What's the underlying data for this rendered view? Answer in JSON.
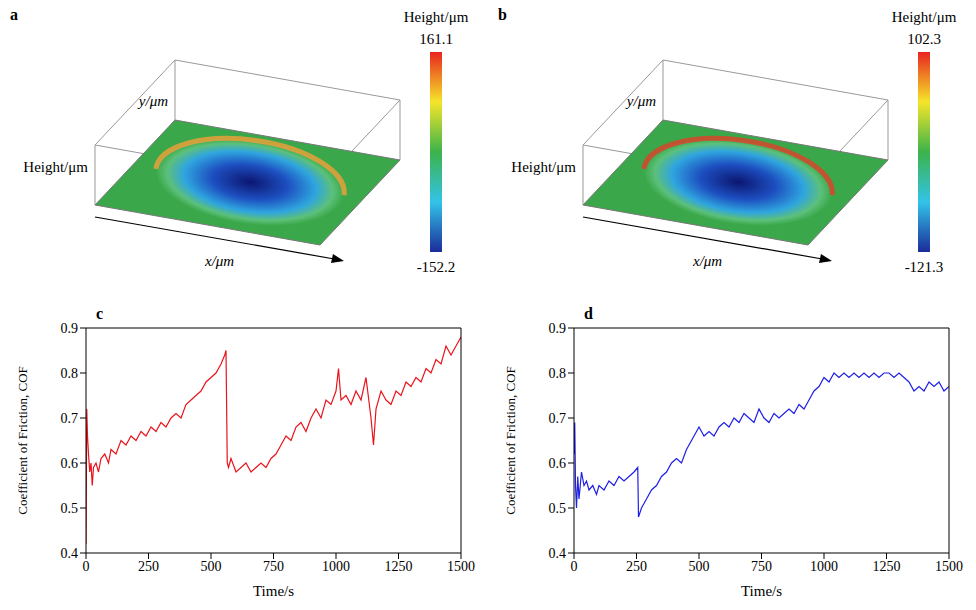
{
  "chart_data": [
    {
      "type": "surface",
      "label": "a",
      "z_label": "Height/μm",
      "x_label": "x/μm",
      "y_label": "y/μm",
      "colorbar_title": "Height/μm",
      "colorbar_range": [
        -152.2,
        161.1
      ]
    },
    {
      "type": "surface",
      "label": "b",
      "z_label": "Height/μm",
      "x_label": "x/μm",
      "y_label": "y/μm",
      "colorbar_title": "Height/μm",
      "colorbar_range": [
        -121.3,
        102.3
      ]
    },
    {
      "type": "line",
      "label": "c",
      "x_label": "Time/s",
      "y_label": "Coefficient of Friction, COF",
      "xlim": [
        0,
        1500
      ],
      "xticks": [
        0,
        250,
        500,
        750,
        1000,
        1250,
        1500
      ],
      "ylim": [
        0.4,
        0.9
      ],
      "yticks": [
        0.4,
        0.5,
        0.6,
        0.7,
        0.8,
        0.9
      ],
      "x": [
        0,
        3,
        6,
        10,
        15,
        20,
        25,
        30,
        40,
        50,
        60,
        75,
        90,
        100,
        120,
        140,
        160,
        180,
        200,
        220,
        240,
        260,
        280,
        300,
        320,
        340,
        360,
        380,
        400,
        420,
        440,
        460,
        480,
        500,
        520,
        540,
        555,
        560,
        565,
        570,
        580,
        600,
        620,
        640,
        660,
        680,
        700,
        720,
        740,
        760,
        780,
        800,
        820,
        840,
        860,
        880,
        900,
        920,
        940,
        960,
        980,
        1000,
        1010,
        1020,
        1040,
        1060,
        1080,
        1100,
        1120,
        1140,
        1150,
        1160,
        1180,
        1200,
        1220,
        1240,
        1260,
        1280,
        1300,
        1320,
        1340,
        1360,
        1380,
        1400,
        1420,
        1440,
        1460,
        1480,
        1500
      ],
      "series": [
        {
          "name": "c",
          "color": "#e8141b",
          "values": [
            0.42,
            0.72,
            0.66,
            0.62,
            0.58,
            0.6,
            0.55,
            0.59,
            0.6,
            0.58,
            0.61,
            0.62,
            0.6,
            0.63,
            0.62,
            0.65,
            0.64,
            0.66,
            0.65,
            0.67,
            0.66,
            0.68,
            0.67,
            0.69,
            0.68,
            0.7,
            0.71,
            0.7,
            0.73,
            0.74,
            0.75,
            0.76,
            0.78,
            0.79,
            0.8,
            0.82,
            0.84,
            0.85,
            0.6,
            0.59,
            0.61,
            0.58,
            0.59,
            0.6,
            0.58,
            0.59,
            0.6,
            0.59,
            0.61,
            0.62,
            0.64,
            0.66,
            0.65,
            0.68,
            0.69,
            0.67,
            0.7,
            0.72,
            0.7,
            0.74,
            0.73,
            0.76,
            0.81,
            0.74,
            0.75,
            0.73,
            0.76,
            0.74,
            0.79,
            0.7,
            0.64,
            0.72,
            0.76,
            0.74,
            0.73,
            0.76,
            0.75,
            0.78,
            0.77,
            0.79,
            0.78,
            0.81,
            0.8,
            0.83,
            0.82,
            0.86,
            0.84,
            0.86,
            0.88
          ]
        }
      ]
    },
    {
      "type": "line",
      "label": "d",
      "x_label": "Time/s",
      "y_label": "Coefficient of Friction, COF",
      "xlim": [
        0,
        1500
      ],
      "xticks": [
        0,
        250,
        500,
        750,
        1000,
        1250,
        1500
      ],
      "ylim": [
        0.4,
        0.9
      ],
      "yticks": [
        0.4,
        0.5,
        0.6,
        0.7,
        0.8,
        0.9
      ],
      "x": [
        0,
        3,
        6,
        10,
        15,
        20,
        30,
        40,
        50,
        60,
        75,
        90,
        100,
        120,
        140,
        160,
        180,
        200,
        220,
        240,
        255,
        258,
        270,
        290,
        310,
        330,
        350,
        370,
        390,
        410,
        430,
        450,
        470,
        490,
        500,
        520,
        540,
        560,
        580,
        600,
        620,
        640,
        660,
        680,
        700,
        720,
        740,
        760,
        780,
        800,
        820,
        840,
        860,
        880,
        900,
        920,
        940,
        960,
        980,
        1000,
        1020,
        1040,
        1060,
        1080,
        1100,
        1120,
        1140,
        1160,
        1180,
        1200,
        1220,
        1240,
        1260,
        1280,
        1300,
        1320,
        1340,
        1360,
        1380,
        1400,
        1420,
        1440,
        1460,
        1480,
        1500
      ],
      "series": [
        {
          "name": "d",
          "color": "#1f1fe6",
          "values": [
            0.62,
            0.69,
            0.55,
            0.5,
            0.57,
            0.52,
            0.58,
            0.55,
            0.56,
            0.54,
            0.55,
            0.53,
            0.55,
            0.54,
            0.56,
            0.55,
            0.57,
            0.56,
            0.57,
            0.58,
            0.59,
            0.48,
            0.5,
            0.52,
            0.54,
            0.55,
            0.57,
            0.58,
            0.6,
            0.61,
            0.6,
            0.63,
            0.65,
            0.67,
            0.68,
            0.66,
            0.67,
            0.66,
            0.68,
            0.69,
            0.68,
            0.7,
            0.69,
            0.71,
            0.7,
            0.69,
            0.72,
            0.7,
            0.69,
            0.71,
            0.7,
            0.71,
            0.72,
            0.71,
            0.73,
            0.72,
            0.74,
            0.76,
            0.77,
            0.79,
            0.78,
            0.8,
            0.79,
            0.8,
            0.79,
            0.8,
            0.79,
            0.8,
            0.79,
            0.8,
            0.79,
            0.8,
            0.8,
            0.79,
            0.8,
            0.79,
            0.78,
            0.76,
            0.77,
            0.76,
            0.78,
            0.77,
            0.78,
            0.76,
            0.77
          ]
        }
      ]
    }
  ]
}
